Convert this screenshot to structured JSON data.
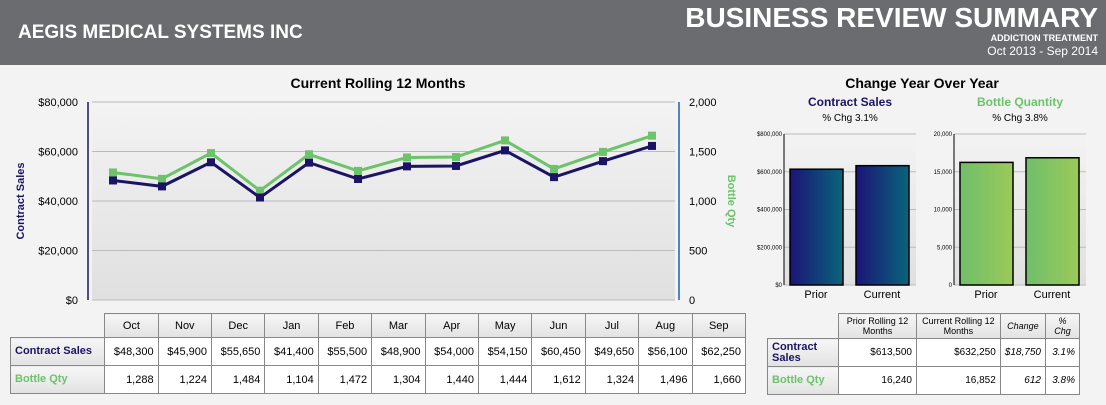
{
  "header": {
    "company": "AEGIS MEDICAL SYSTEMS INC",
    "title": "BUSINESS REVIEW SUMMARY",
    "subtitle": "ADDICTION TREATMENT",
    "period": "Oct 2013 - Sep 2014"
  },
  "colors": {
    "contract_sales": "#1b1464",
    "bottle_qty": "#6cc36a",
    "header_bg": "#6b6c70"
  },
  "chart_data": [
    {
      "type": "line",
      "title": "Current Rolling 12 Months",
      "categories": [
        "Oct",
        "Nov",
        "Dec",
        "Jan",
        "Feb",
        "Mar",
        "Apr",
        "May",
        "Jun",
        "Jul",
        "Aug",
        "Sep"
      ],
      "series": [
        {
          "name": "Contract Sales",
          "axis": "left",
          "values": [
            48300,
            45900,
            55650,
            41400,
            55500,
            48900,
            54000,
            54150,
            60450,
            49650,
            56100,
            62250
          ]
        },
        {
          "name": "Bottle Qty",
          "axis": "right",
          "values": [
            1288,
            1224,
            1484,
            1104,
            1472,
            1304,
            1440,
            1444,
            1612,
            1324,
            1496,
            1660
          ]
        }
      ],
      "ylabel": "Contract Sales",
      "y2label": "Bottle Qty",
      "ylim": [
        0,
        80000
      ],
      "y2lim": [
        0,
        2000
      ],
      "yticks": [
        "$0",
        "$20,000",
        "$40,000",
        "$60,000",
        "$80,000"
      ],
      "y2ticks": [
        "0",
        "500",
        "1,000",
        "1,500",
        "2,000"
      ],
      "grid": true
    },
    {
      "type": "bar",
      "title": "Contract Sales",
      "subtitle": "% Chg 3.1%",
      "categories": [
        "Prior",
        "Current"
      ],
      "values": [
        613500,
        632250
      ],
      "ylim": [
        0,
        800000
      ],
      "yticks": [
        "$0",
        "$200,000",
        "$400,000",
        "$600,000",
        "$800,000"
      ]
    },
    {
      "type": "bar",
      "title": "Bottle Quantity",
      "subtitle": "% Chg 3.8%",
      "categories": [
        "Prior",
        "Current"
      ],
      "values": [
        16240,
        16852
      ],
      "ylim": [
        0,
        20000
      ],
      "yticks": [
        "0",
        "5,000",
        "10,000",
        "15,000",
        "20,000"
      ]
    }
  ],
  "yoy": {
    "title": "Change Year Over Year"
  },
  "monthly_table": {
    "rows": [
      {
        "label": "Contract Sales",
        "cells": [
          "$48,300",
          "$45,900",
          "$55,650",
          "$41,400",
          "$55,500",
          "$48,900",
          "$54,000",
          "$54,150",
          "$60,450",
          "$49,650",
          "$56,100",
          "$62,250"
        ]
      },
      {
        "label": "Bottle Qty",
        "cells": [
          "1,288",
          "1,224",
          "1,484",
          "1,104",
          "1,472",
          "1,304",
          "1,440",
          "1,444",
          "1,612",
          "1,324",
          "1,496",
          "1,660"
        ]
      }
    ]
  },
  "yoy_table": {
    "headers": [
      "Prior Rolling 12 Months",
      "Current Rolling 12 Months",
      "Change",
      "% Chg"
    ],
    "rows": [
      {
        "label": "Contract Sales",
        "cells": [
          "$613,500",
          "$632,250",
          "$18,750",
          "3.1%"
        ]
      },
      {
        "label": "Bottle Qty",
        "cells": [
          "16,240",
          "16,852",
          "612",
          "3.8%"
        ]
      }
    ]
  }
}
